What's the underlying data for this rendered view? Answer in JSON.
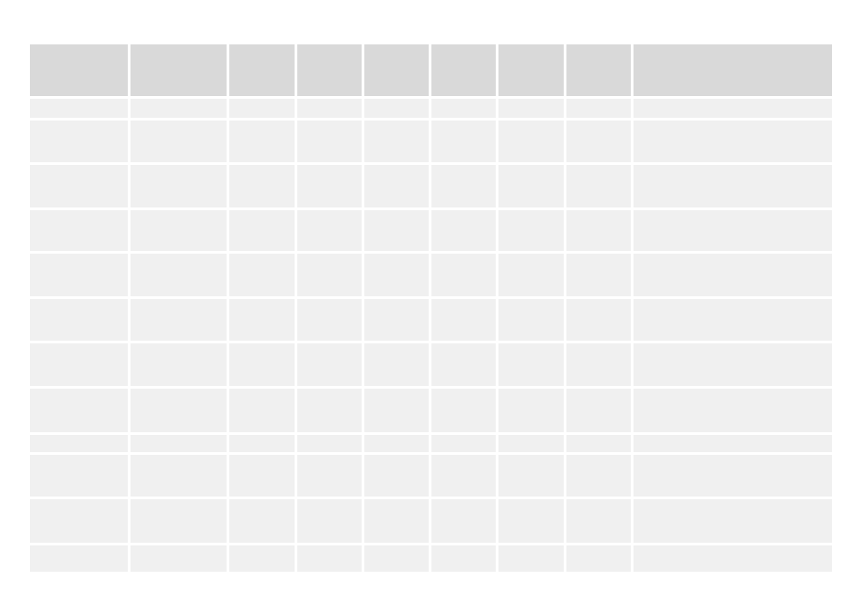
{
  "page": {
    "background": "#ffffff"
  },
  "table": {
    "column_count": 9,
    "row_count": 12,
    "colors": {
      "header_bg": "#d9d9d9",
      "cell_bg": "#f0f0f0",
      "grid_gap": "#ffffff"
    },
    "header": {
      "cells": [
        "",
        "",
        "",
        "",
        "",
        "",
        "",
        "",
        ""
      ]
    },
    "rows": [
      {
        "cells": [
          "",
          "",
          "",
          "",
          "",
          "",
          "",
          "",
          ""
        ]
      },
      {
        "cells": [
          "",
          "",
          "",
          "",
          "",
          "",
          "",
          "",
          ""
        ]
      },
      {
        "cells": [
          "",
          "",
          "",
          "",
          "",
          "",
          "",
          "",
          ""
        ]
      },
      {
        "cells": [
          "",
          "",
          "",
          "",
          "",
          "",
          "",
          "",
          ""
        ]
      },
      {
        "cells": [
          "",
          "",
          "",
          "",
          "",
          "",
          "",
          "",
          ""
        ]
      },
      {
        "cells": [
          "",
          "",
          "",
          "",
          "",
          "",
          "",
          "",
          ""
        ]
      },
      {
        "cells": [
          "",
          "",
          "",
          "",
          "",
          "",
          "",
          "",
          ""
        ]
      },
      {
        "cells": [
          "",
          "",
          "",
          "",
          "",
          "",
          "",
          "",
          ""
        ]
      },
      {
        "cells": [
          "",
          "",
          "",
          "",
          "",
          "",
          "",
          "",
          ""
        ]
      },
      {
        "cells": [
          "",
          "",
          "",
          "",
          "",
          "",
          "",
          "",
          ""
        ]
      },
      {
        "cells": [
          "",
          "",
          "",
          "",
          "",
          "",
          "",
          "",
          ""
        ]
      },
      {
        "cells": [
          "",
          "",
          "",
          "",
          "",
          "",
          "",
          "",
          ""
        ]
      }
    ]
  }
}
